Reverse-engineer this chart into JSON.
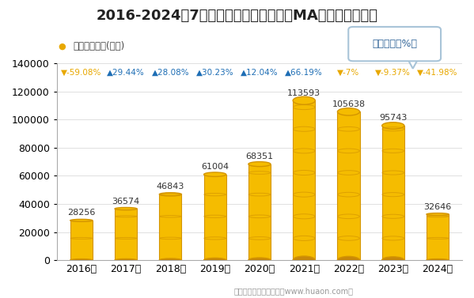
{
  "title": "2016-2024年7月郑州商品交易所甲醇（MA）期货成交金额",
  "legend_label": "期货成交金额(亿元)",
  "yoy_box_label": "同比增速（%）",
  "categories": [
    "2016年",
    "2017年",
    "2018年",
    "2019年",
    "2020年",
    "2021年",
    "2022年",
    "2023年",
    "2024年"
  ],
  "values": [
    28256,
    36574,
    46843,
    61004,
    68351,
    113593,
    105638,
    95743,
    32646
  ],
  "yoy_labels": [
    "▼-59.08%",
    "▲29.44%",
    "▲28.08%",
    "▲30.23%",
    "▲12.04%",
    "▲66.19%",
    "▼-7%",
    "▼-9.37%",
    "▼-41.98%"
  ],
  "yoy_up": [
    false,
    true,
    true,
    true,
    true,
    true,
    false,
    false,
    false
  ],
  "yoy_color_up": "#1e6eb5",
  "yoy_color_down": "#e8a800",
  "bar_fill": "#f5bc00",
  "bar_dark": "#c8880a",
  "bar_edge": "#d49500",
  "background_color": "#ffffff",
  "ylim": [
    0,
    140000
  ],
  "yticks": [
    0,
    20000,
    40000,
    60000,
    80000,
    100000,
    120000,
    140000
  ],
  "footer": "制图：华经产业研究院（www.huaon.com）",
  "title_fontsize": 13,
  "axis_fontsize": 9,
  "value_fontsize": 8,
  "yoy_fontsize": 7.5,
  "legend_dot_color": "#e8a800"
}
